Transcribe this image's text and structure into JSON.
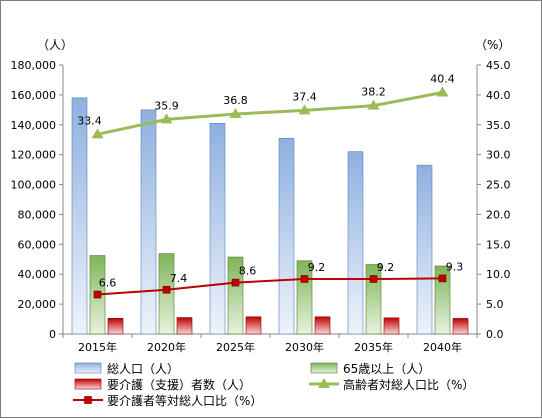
{
  "chart_data": {
    "type": "bar",
    "categories": [
      "2015年",
      "2020年",
      "2025年",
      "2030年",
      "2035年",
      "2040年"
    ],
    "left_axis": {
      "unit": "（人）",
      "min": 0,
      "max": 180000,
      "step": 20000,
      "tick_labels": [
        "0",
        "20,000",
        "40,000",
        "60,000",
        "80,000",
        "100,000",
        "120,000",
        "140,000",
        "160,000",
        "180,000"
      ]
    },
    "right_axis": {
      "unit": "（%）",
      "min": 0,
      "max": 45,
      "step": 5,
      "tick_labels": [
        "0.0",
        "5.0",
        "10.0",
        "15.0",
        "20.0",
        "25.0",
        "30.0",
        "35.0",
        "40.0",
        "45.0"
      ]
    },
    "series": [
      {
        "name": "総人口（人）",
        "type": "bar",
        "axis": "left",
        "color": "#95b3d7",
        "values": [
          158000,
          150000,
          141000,
          131000,
          122000,
          113000
        ]
      },
      {
        "name": "65歳以上（人）",
        "type": "bar",
        "axis": "left",
        "color": "#77a64b",
        "values": [
          52500,
          53800,
          51500,
          49000,
          46500,
          45500
        ]
      },
      {
        "name": "要介護（支援）者数（人）",
        "type": "bar",
        "axis": "left",
        "color": "#c00000",
        "values": [
          10500,
          11000,
          11500,
          11500,
          10800,
          10400
        ]
      },
      {
        "name": "高齢者対総人口比（%）",
        "type": "line",
        "axis": "right",
        "color": "#9bbb59",
        "values": [
          33.4,
          35.9,
          36.8,
          37.4,
          38.2,
          40.4
        ],
        "labels": [
          "33.4",
          "35.9",
          "36.8",
          "37.4",
          "38.2",
          "40.4"
        ]
      },
      {
        "name": "要介護者等対総人口比（%）",
        "type": "line",
        "axis": "right",
        "color": "#c00000",
        "values": [
          6.6,
          7.4,
          8.6,
          9.2,
          9.2,
          9.3
        ],
        "labels": [
          "6.6",
          "7.4",
          "8.6",
          "9.2",
          "9.2",
          "9.3"
        ]
      }
    ],
    "grid": false,
    "legend_placement": "bottom"
  }
}
